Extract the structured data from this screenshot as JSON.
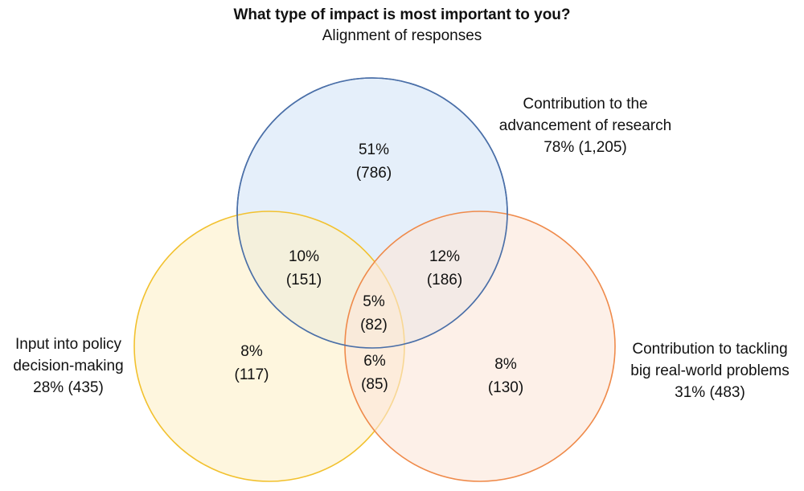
{
  "title": "What type of impact is most important to you?",
  "subtitle": "Alignment of responses",
  "sets": {
    "research": {
      "label_lines": [
        "Contribution to the",
        "advancement of research"
      ],
      "stat": "78% (1,205)",
      "fill": "#dce9f8",
      "stroke": "#4a6fa8"
    },
    "policy": {
      "label_lines": [
        "Input into policy",
        "decision-making"
      ],
      "stat": "28% (435)",
      "fill": "#fdf0c8",
      "stroke": "#f2c12e"
    },
    "problems": {
      "label_lines": [
        "Contribution to tackling",
        "big real-world problems"
      ],
      "stat": "31% (483)",
      "fill": "#fbe6d8",
      "stroke": "#ef8a4a"
    }
  },
  "regions": {
    "research_only": {
      "pct": "51%",
      "count": "(786)"
    },
    "research_policy": {
      "pct": "10%",
      "count": "(151)"
    },
    "research_problems": {
      "pct": "12%",
      "count": "(186)"
    },
    "all_three": {
      "pct": "5%",
      "count": "(82)"
    },
    "policy_only": {
      "pct": "8%",
      "count": "(117)"
    },
    "policy_problems": {
      "pct": "6%",
      "count": "(85)"
    },
    "problems_only": {
      "pct": "8%",
      "count": "(130)"
    }
  }
}
